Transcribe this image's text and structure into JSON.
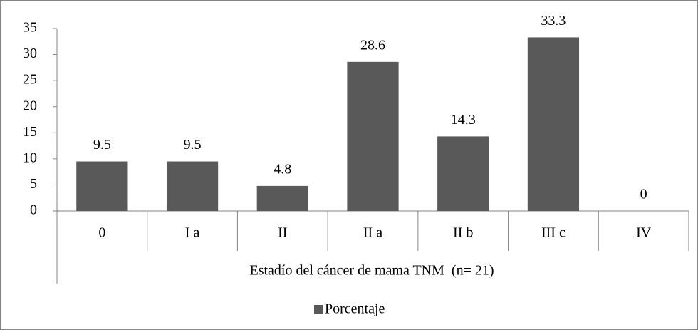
{
  "chart_data": {
    "type": "bar",
    "categories": [
      "0",
      "I a",
      "II",
      "II a",
      "II b",
      "III c",
      "IV"
    ],
    "series": [
      {
        "name": "Porcentaje",
        "color": "#595959",
        "values": [
          9.5,
          9.5,
          4.8,
          28.6,
          14.3,
          33.3,
          0
        ]
      }
    ],
    "x_label": "Estadío del cáncer de mama TNM  (n= 21)",
    "ylim": [
      0,
      35
    ],
    "yticks": [
      0,
      5,
      10,
      15,
      20,
      25,
      30,
      35
    ],
    "legend": "bottom",
    "data_labels": true
  }
}
